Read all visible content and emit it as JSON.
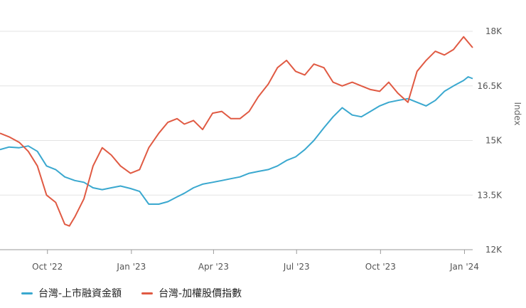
{
  "chart_data": {
    "type": "line",
    "title": "",
    "xlabel": "",
    "ylabel": "Index",
    "y_ticks": [
      "12K",
      "13.5K",
      "15K",
      "16.5K",
      "18K"
    ],
    "y_tick_values": [
      12000,
      13500,
      15000,
      16500,
      18000
    ],
    "ylim": [
      12000,
      18000
    ],
    "x_ticks": [
      "Oct '22",
      "Jan '23",
      "Apr '23",
      "Jul '23",
      "Oct '23",
      "Jan '24"
    ],
    "x_tick_dates": [
      "2022-10-01",
      "2023-01-01",
      "2023-04-01",
      "2023-07-01",
      "2023-10-01",
      "2024-01-01"
    ],
    "xlim": [
      "2022-08-10",
      "2024-01-10"
    ],
    "grid": true,
    "legend_position": "bottom-left",
    "series": [
      {
        "name": "台灣-上市融資金額",
        "color": "#3aa8cf",
        "points": [
          [
            "2022-08-10",
            14750
          ],
          [
            "2022-08-20",
            14820
          ],
          [
            "2022-08-31",
            14800
          ],
          [
            "2022-09-10",
            14850
          ],
          [
            "2022-09-20",
            14700
          ],
          [
            "2022-09-30",
            14300
          ],
          [
            "2022-10-10",
            14200
          ],
          [
            "2022-10-20",
            14000
          ],
          [
            "2022-10-31",
            13900
          ],
          [
            "2022-11-10",
            13850
          ],
          [
            "2022-11-20",
            13700
          ],
          [
            "2022-11-30",
            13650
          ],
          [
            "2022-12-10",
            13700
          ],
          [
            "2022-12-20",
            13750
          ],
          [
            "2022-12-31",
            13680
          ],
          [
            "2023-01-10",
            13600
          ],
          [
            "2023-01-20",
            13250
          ],
          [
            "2023-01-31",
            13250
          ],
          [
            "2023-02-10",
            13320
          ],
          [
            "2023-02-20",
            13450
          ],
          [
            "2023-02-28",
            13550
          ],
          [
            "2023-03-10",
            13700
          ],
          [
            "2023-03-20",
            13800
          ],
          [
            "2023-03-31",
            13850
          ],
          [
            "2023-04-10",
            13900
          ],
          [
            "2023-04-20",
            13950
          ],
          [
            "2023-04-30",
            14000
          ],
          [
            "2023-05-10",
            14100
          ],
          [
            "2023-05-20",
            14150
          ],
          [
            "2023-05-31",
            14200
          ],
          [
            "2023-06-10",
            14300
          ],
          [
            "2023-06-20",
            14450
          ],
          [
            "2023-06-30",
            14550
          ],
          [
            "2023-07-10",
            14750
          ],
          [
            "2023-07-20",
            15000
          ],
          [
            "2023-07-31",
            15350
          ],
          [
            "2023-08-10",
            15650
          ],
          [
            "2023-08-20",
            15900
          ],
          [
            "2023-08-31",
            15700
          ],
          [
            "2023-09-10",
            15650
          ],
          [
            "2023-09-20",
            15800
          ],
          [
            "2023-09-30",
            15950
          ],
          [
            "2023-10-10",
            16050
          ],
          [
            "2023-10-20",
            16100
          ],
          [
            "2023-10-31",
            16150
          ],
          [
            "2023-11-10",
            16050
          ],
          [
            "2023-11-20",
            15950
          ],
          [
            "2023-11-30",
            16100
          ],
          [
            "2023-12-10",
            16350
          ],
          [
            "2023-12-20",
            16500
          ],
          [
            "2023-12-31",
            16650
          ],
          [
            "2024-01-05",
            16750
          ],
          [
            "2024-01-10",
            16700
          ]
        ]
      },
      {
        "name": "台灣-加權股價指數",
        "color": "#e05a43",
        "points": [
          [
            "2022-08-10",
            15200
          ],
          [
            "2022-08-20",
            15100
          ],
          [
            "2022-08-31",
            14950
          ],
          [
            "2022-09-10",
            14700
          ],
          [
            "2022-09-20",
            14300
          ],
          [
            "2022-09-30",
            13500
          ],
          [
            "2022-10-10",
            13300
          ],
          [
            "2022-10-20",
            12700
          ],
          [
            "2022-10-25",
            12650
          ],
          [
            "2022-10-31",
            12900
          ],
          [
            "2022-11-10",
            13400
          ],
          [
            "2022-11-20",
            14300
          ],
          [
            "2022-11-30",
            14800
          ],
          [
            "2022-12-10",
            14600
          ],
          [
            "2022-12-20",
            14300
          ],
          [
            "2022-12-31",
            14100
          ],
          [
            "2023-01-10",
            14200
          ],
          [
            "2023-01-20",
            14800
          ],
          [
            "2023-01-31",
            15200
          ],
          [
            "2023-02-10",
            15500
          ],
          [
            "2023-02-20",
            15600
          ],
          [
            "2023-02-28",
            15450
          ],
          [
            "2023-03-10",
            15550
          ],
          [
            "2023-03-20",
            15300
          ],
          [
            "2023-03-31",
            15750
          ],
          [
            "2023-04-10",
            15800
          ],
          [
            "2023-04-20",
            15600
          ],
          [
            "2023-04-30",
            15600
          ],
          [
            "2023-05-10",
            15800
          ],
          [
            "2023-05-20",
            16200
          ],
          [
            "2023-05-31",
            16550
          ],
          [
            "2023-06-10",
            17000
          ],
          [
            "2023-06-20",
            17200
          ],
          [
            "2023-06-30",
            16900
          ],
          [
            "2023-07-10",
            16800
          ],
          [
            "2023-07-20",
            17100
          ],
          [
            "2023-07-31",
            17000
          ],
          [
            "2023-08-10",
            16600
          ],
          [
            "2023-08-20",
            16500
          ],
          [
            "2023-08-31",
            16600
          ],
          [
            "2023-09-10",
            16500
          ],
          [
            "2023-09-20",
            16400
          ],
          [
            "2023-09-30",
            16350
          ],
          [
            "2023-10-10",
            16600
          ],
          [
            "2023-10-20",
            16300
          ],
          [
            "2023-10-31",
            16050
          ],
          [
            "2023-11-10",
            16900
          ],
          [
            "2023-11-20",
            17200
          ],
          [
            "2023-11-30",
            17450
          ],
          [
            "2023-12-10",
            17350
          ],
          [
            "2023-12-20",
            17500
          ],
          [
            "2023-12-31",
            17850
          ],
          [
            "2024-01-05",
            17700
          ],
          [
            "2024-01-10",
            17550
          ]
        ]
      }
    ]
  }
}
